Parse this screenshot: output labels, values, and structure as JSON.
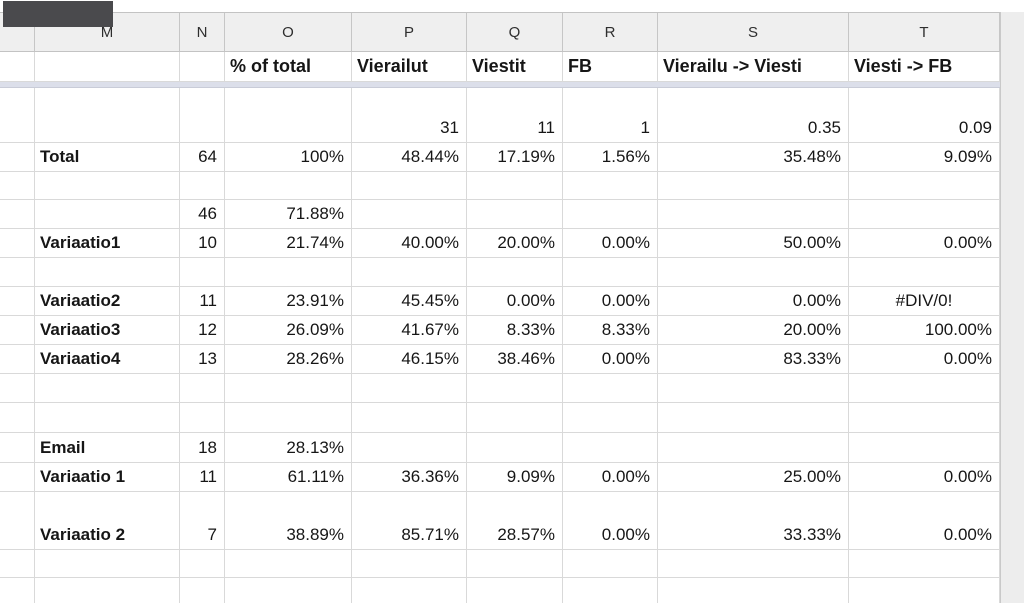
{
  "sheet": {
    "column_headers": [
      "",
      "M",
      "N",
      "O",
      "P",
      "Q",
      "R",
      "S",
      "T"
    ],
    "header_labels": {
      "m": "",
      "n": "",
      "o": "% of total",
      "p": "Vierailut",
      "q": "Viestit",
      "r": "FB",
      "s": "Vierailu -> Viesti",
      "t": "Viesti -> FB"
    },
    "rows": [
      {
        "m": "",
        "n": "",
        "o": "",
        "p": "31",
        "q": "11",
        "r": "1",
        "s": "0.35",
        "t": "0.09"
      },
      {
        "m": "Total",
        "n": "64",
        "o": "100%",
        "p": "48.44%",
        "q": "17.19%",
        "r": "1.56%",
        "s": "35.48%",
        "t": "9.09%"
      },
      {
        "m": "",
        "n": "",
        "o": "",
        "p": "",
        "q": "",
        "r": "",
        "s": "",
        "t": ""
      },
      {
        "m": "",
        "n": "46",
        "o": "71.88%",
        "p": "",
        "q": "",
        "r": "",
        "s": "",
        "t": ""
      },
      {
        "m": "Variaatio1",
        "n": "10",
        "o": "21.74%",
        "p": "40.00%",
        "q": "20.00%",
        "r": "0.00%",
        "s": "50.00%",
        "t": "0.00%"
      },
      {
        "m": "",
        "n": "",
        "o": "",
        "p": "",
        "q": "",
        "r": "",
        "s": "",
        "t": ""
      },
      {
        "m": "Variaatio2",
        "n": "11",
        "o": "23.91%",
        "p": "45.45%",
        "q": "0.00%",
        "r": "0.00%",
        "s": "0.00%",
        "t": "#DIV/0!"
      },
      {
        "m": "Variaatio3",
        "n": "12",
        "o": "26.09%",
        "p": "41.67%",
        "q": "8.33%",
        "r": "8.33%",
        "s": "20.00%",
        "t": "100.00%"
      },
      {
        "m": "Variaatio4",
        "n": "13",
        "o": "28.26%",
        "p": "46.15%",
        "q": "38.46%",
        "r": "0.00%",
        "s": "83.33%",
        "t": "0.00%"
      },
      {
        "m": "",
        "n": "",
        "o": "",
        "p": "",
        "q": "",
        "r": "",
        "s": "",
        "t": ""
      },
      {
        "m": "",
        "n": "",
        "o": "",
        "p": "",
        "q": "",
        "r": "",
        "s": "",
        "t": ""
      },
      {
        "m": "Email",
        "n": "18",
        "o": "28.13%",
        "p": "",
        "q": "",
        "r": "",
        "s": "",
        "t": ""
      },
      {
        "m": "Variaatio 1",
        "n": "11",
        "o": "61.11%",
        "p": "36.36%",
        "q": "9.09%",
        "r": "0.00%",
        "s": "25.00%",
        "t": "0.00%"
      },
      {
        "m": "Variaatio 2",
        "n": "7",
        "o": "38.89%",
        "p": "85.71%",
        "q": "28.57%",
        "r": "0.00%",
        "s": "33.33%",
        "t": "0.00%"
      },
      {
        "m": "",
        "n": "",
        "o": "",
        "p": "",
        "q": "",
        "r": "",
        "s": "",
        "t": ""
      },
      {
        "m": "",
        "n": "",
        "o": "",
        "p": "",
        "q": "",
        "r": "",
        "s": "",
        "t": ""
      }
    ],
    "colors": {
      "header_bg": "#efefef",
      "gridline": "#d9d9d9",
      "frozen_divider": "#dcdfea",
      "redaction": "#4a4a4d",
      "note_marker": "#c0392b"
    }
  }
}
